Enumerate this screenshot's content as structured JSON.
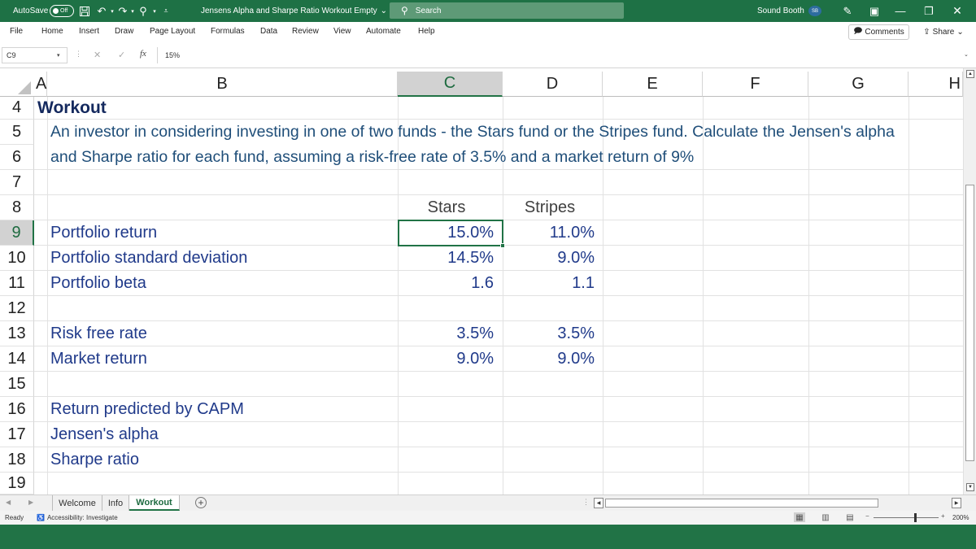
{
  "titlebar": {
    "autosave_label": "AutoSave",
    "autosave_state": "Off",
    "document_title": "Jensens Alpha and Sharpe Ratio Workout Empty",
    "title_chevron": "⌄",
    "search_placeholder": "Search",
    "user_name": "Sound Booth",
    "user_initials": "SB",
    "accent_color": "#217346"
  },
  "ribbon": {
    "tabs": [
      "File",
      "Home",
      "Insert",
      "Draw",
      "Page Layout",
      "Formulas",
      "Data",
      "Review",
      "View",
      "Automate",
      "Help"
    ],
    "comments_label": "Comments",
    "share_label": "Share"
  },
  "formula_bar": {
    "name_box": "C9",
    "fx_label": "fx",
    "value": "15%"
  },
  "columns": [
    "A",
    "B",
    "C",
    "D",
    "E",
    "F",
    "G",
    "H"
  ],
  "rows": [
    "4",
    "5",
    "6",
    "7",
    "8",
    "9",
    "10",
    "11",
    "12",
    "13",
    "14",
    "15",
    "16",
    "17",
    "18",
    "19"
  ],
  "sheet": {
    "heading": "Workout",
    "description_line1": "An investor in considering investing in one of two funds - the Stars fund or the Stripes fund. Calculate the Jensen's alpha",
    "description_line2": "and Sharpe ratio for each fund, assuming a risk-free rate of 3.5% and a market return of 9%",
    "col_stars": "Stars",
    "col_stripes": "Stripes",
    "portfolio_return": {
      "label": "Portfolio return",
      "stars": "15.0%",
      "stripes": "11.0%"
    },
    "portfolio_sd": {
      "label": "Portfolio standard deviation",
      "stars": "14.5%",
      "stripes": "9.0%"
    },
    "portfolio_beta": {
      "label": "Portfolio beta",
      "stars": "1.6",
      "stripes": "1.1"
    },
    "risk_free": {
      "label": "Risk free rate",
      "stars": "3.5%",
      "stripes": "3.5%"
    },
    "market_return": {
      "label": "Market return",
      "stars": "9.0%",
      "stripes": "9.0%"
    },
    "capm_label": "Return predicted by CAPM",
    "alpha_label": "Jensen's alpha",
    "sharpe_label": "Sharpe ratio"
  },
  "sheet_tabs": {
    "welcome": "Welcome",
    "info": "Info",
    "workout": "Workout",
    "active": "Workout"
  },
  "status": {
    "ready": "Ready",
    "accessibility": "Accessibility: Investigate",
    "zoom": "200%"
  }
}
